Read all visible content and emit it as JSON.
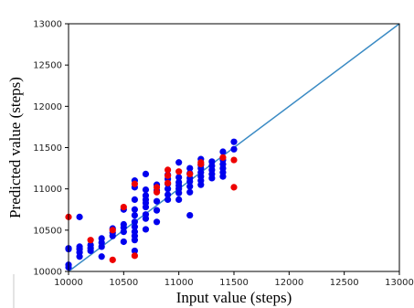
{
  "chart_data": {
    "type": "scatter",
    "xlabel": "Input value (steps)",
    "ylabel": "Predicted value (steps)",
    "xlim": [
      10000,
      13000
    ],
    "ylim": [
      10000,
      13000
    ],
    "xticks": [
      "10000",
      "10500",
      "11000",
      "11500",
      "12000",
      "12500",
      "13000"
    ],
    "yticks": [
      "10000",
      "10500",
      "11000",
      "11500",
      "12000",
      "12500",
      "13000"
    ],
    "grid": false,
    "reference_line": {
      "x": [
        10000,
        13000
      ],
      "y": [
        10000,
        13000
      ],
      "color": "#3b8bc4"
    },
    "series": [
      {
        "color": "#0000ee",
        "points": [
          [
            10000,
            10050
          ],
          [
            10000,
            10080
          ],
          [
            10000,
            10270
          ],
          [
            10000,
            10280
          ],
          [
            10100,
            10180
          ],
          [
            10100,
            10230
          ],
          [
            10100,
            10270
          ],
          [
            10100,
            10300
          ],
          [
            10100,
            10660
          ],
          [
            10200,
            10250
          ],
          [
            10200,
            10280
          ],
          [
            10200,
            10320
          ],
          [
            10300,
            10300
          ],
          [
            10300,
            10350
          ],
          [
            10300,
            10400
          ],
          [
            10300,
            10180
          ],
          [
            10400,
            10430
          ],
          [
            10400,
            10470
          ],
          [
            10400,
            10520
          ],
          [
            10500,
            10360
          ],
          [
            10500,
            10480
          ],
          [
            10500,
            10530
          ],
          [
            10500,
            10570
          ],
          [
            10500,
            10750
          ],
          [
            10600,
            10250
          ],
          [
            10600,
            10380
          ],
          [
            10600,
            10430
          ],
          [
            10600,
            10480
          ],
          [
            10600,
            10540
          ],
          [
            10600,
            10600
          ],
          [
            10600,
            10680
          ],
          [
            10600,
            10750
          ],
          [
            10600,
            10870
          ],
          [
            10600,
            11020
          ],
          [
            10600,
            11100
          ],
          [
            10700,
            10510
          ],
          [
            10700,
            10640
          ],
          [
            10700,
            10690
          ],
          [
            10700,
            10780
          ],
          [
            10700,
            10830
          ],
          [
            10700,
            10870
          ],
          [
            10700,
            10920
          ],
          [
            10700,
            10990
          ],
          [
            10700,
            11180
          ],
          [
            10800,
            10600
          ],
          [
            10800,
            10740
          ],
          [
            10800,
            10850
          ],
          [
            10800,
            10980
          ],
          [
            10800,
            11050
          ],
          [
            10900,
            10870
          ],
          [
            10900,
            10930
          ],
          [
            10900,
            11000
          ],
          [
            10900,
            11060
          ],
          [
            10900,
            11120
          ],
          [
            10900,
            11170
          ],
          [
            11000,
            10870
          ],
          [
            11000,
            10950
          ],
          [
            11000,
            11000
          ],
          [
            11000,
            11040
          ],
          [
            11000,
            11080
          ],
          [
            11000,
            11140
          ],
          [
            11000,
            11320
          ],
          [
            11100,
            10680
          ],
          [
            11100,
            10960
          ],
          [
            11100,
            11030
          ],
          [
            11100,
            11090
          ],
          [
            11100,
            11130
          ],
          [
            11100,
            11190
          ],
          [
            11100,
            11250
          ],
          [
            11200,
            11050
          ],
          [
            11200,
            11100
          ],
          [
            11200,
            11150
          ],
          [
            11200,
            11200
          ],
          [
            11200,
            11250
          ],
          [
            11200,
            11290
          ],
          [
            11200,
            11360
          ],
          [
            11300,
            11130
          ],
          [
            11300,
            11180
          ],
          [
            11300,
            11230
          ],
          [
            11300,
            11280
          ],
          [
            11300,
            11330
          ],
          [
            11400,
            11150
          ],
          [
            11400,
            11200
          ],
          [
            11400,
            11250
          ],
          [
            11400,
            11300
          ],
          [
            11400,
            11350
          ],
          [
            11400,
            11450
          ],
          [
            11500,
            11480
          ],
          [
            11500,
            11570
          ]
        ]
      },
      {
        "color": "#ee0000",
        "points": [
          [
            10000,
            10660
          ],
          [
            10200,
            10380
          ],
          [
            10400,
            10140
          ],
          [
            10400,
            10500
          ],
          [
            10500,
            10780
          ],
          [
            10600,
            10190
          ],
          [
            10600,
            11060
          ],
          [
            10800,
            10960
          ],
          [
            10800,
            11020
          ],
          [
            10900,
            11070
          ],
          [
            10900,
            11160
          ],
          [
            10900,
            11230
          ],
          [
            11000,
            11210
          ],
          [
            11100,
            11180
          ],
          [
            11200,
            11300
          ],
          [
            11200,
            11320
          ],
          [
            11400,
            11380
          ],
          [
            11500,
            11350
          ],
          [
            11500,
            11020
          ]
        ]
      }
    ]
  }
}
